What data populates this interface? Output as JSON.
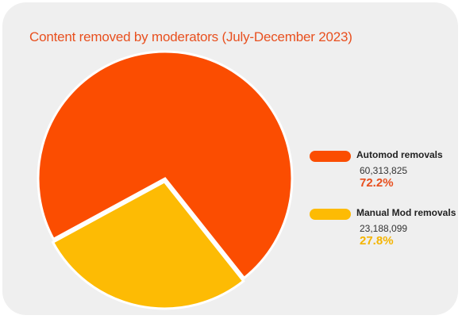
{
  "chart_data": {
    "type": "pie",
    "title": "Content removed by moderators (July-December 2023)",
    "slices": [
      {
        "label": "Automod removals",
        "value": 60313825,
        "value_text": "60,313,825",
        "percent": 72.2,
        "percent_text": "72.2%",
        "color": "#fb4d01"
      },
      {
        "label": "Manual Mod removals",
        "value": 23188099,
        "value_text": "23,188,099",
        "percent": 27.8,
        "percent_text": "27.8%",
        "color": "#fdbb04"
      }
    ],
    "legend_position": "right"
  },
  "colors": {
    "title": "#e8501f",
    "card_background": "#efefef",
    "pct_automod": "#e8501f",
    "pct_manual": "#f4b400"
  }
}
